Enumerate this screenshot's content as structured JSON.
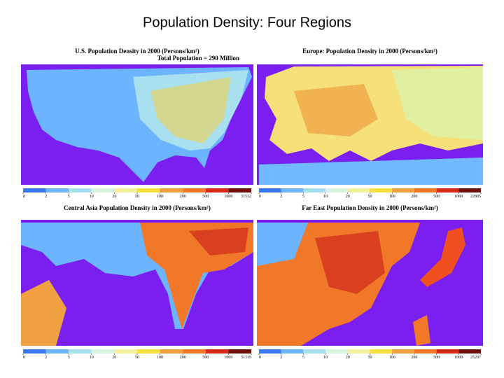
{
  "title": "Population Density: Four Regions",
  "panels": [
    {
      "title": "U.S. Population Density in 2000 (Persons/km²)",
      "subtitle": "Total Population = 290 Million",
      "scale": [
        0,
        2,
        5,
        10,
        20,
        50,
        100,
        200,
        500,
        1000,
        31512
      ]
    },
    {
      "title": "Europe: Population Density in 2000 (Persons/km²)",
      "scale": [
        0,
        2,
        5,
        10,
        20,
        50,
        100,
        200,
        500,
        1000,
        22805
      ]
    },
    {
      "title": "Central Asia Population Density in 2000 (Persons/km²)",
      "scale": [
        0,
        2,
        5,
        10,
        20,
        50,
        100,
        200,
        500,
        1000,
        51319
      ]
    },
    {
      "title": "Far East Population Density in 2000 (Persons/km²)",
      "scale": [
        0,
        2,
        5,
        10,
        20,
        50,
        100,
        200,
        500,
        1000,
        25207
      ]
    }
  ]
}
